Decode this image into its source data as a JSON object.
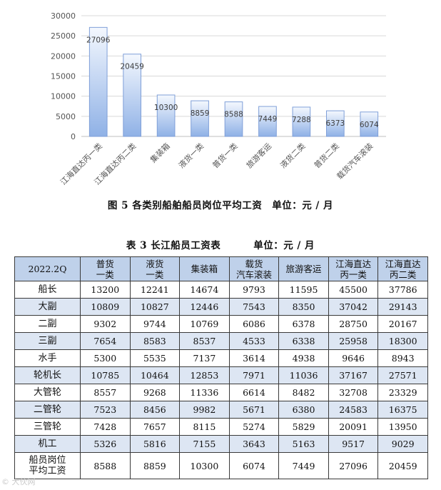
{
  "chart_data": {
    "type": "bar",
    "categories": [
      "江海直达丙一类",
      "江海直达丙二类",
      "集装箱",
      "液货一类",
      "普货一类",
      "旅游客运",
      "液货二类",
      "普货二类",
      "载货汽车滚装"
    ],
    "values": [
      27096,
      20459,
      10300,
      8859,
      8588,
      7449,
      7288,
      6373,
      6074
    ],
    "value_labels": [
      "27096",
      "20459",
      "10300",
      "8859",
      "8588",
      "7449",
      "7288",
      "6373",
      "6074"
    ],
    "y_ticks": [
      "0",
      "5000",
      "10000",
      "15000",
      "20000",
      "25000",
      "30000"
    ],
    "ylim": [
      0,
      30000
    ],
    "grid": true,
    "legend": "none",
    "bar_color_top": "#f4f8fe",
    "bar_color_bottom": "#8fb1e6",
    "bar_border": "#7f9fd8"
  },
  "figure_caption": {
    "title": "图 5   各类别船舶船员岗位平均工资",
    "unit": "单位：元 / 月"
  },
  "table_caption": {
    "title": "表 3   长江船员工资表",
    "unit": "单位：元 / 月"
  },
  "table": {
    "corner": "2022.2Q",
    "headers": [
      [
        "普货",
        "一类"
      ],
      [
        "液货",
        "一类"
      ],
      [
        "集装箱"
      ],
      [
        "载货",
        "汽车滚装"
      ],
      [
        "旅游客运"
      ],
      [
        "江海直达",
        "丙一类"
      ],
      [
        "江海直达",
        "丙二类"
      ]
    ],
    "rows": [
      {
        "label": [
          "船长"
        ],
        "values": [
          "13200",
          "12241",
          "14674",
          "9793",
          "11595",
          "45500",
          "37786"
        ]
      },
      {
        "label": [
          "大副"
        ],
        "values": [
          "10809",
          "10827",
          "12446",
          "7543",
          "8350",
          "37042",
          "29143"
        ]
      },
      {
        "label": [
          "二副"
        ],
        "values": [
          "9302",
          "9744",
          "10769",
          "6086",
          "6378",
          "28750",
          "20167"
        ]
      },
      {
        "label": [
          "三副"
        ],
        "values": [
          "7654",
          "8583",
          "8537",
          "4533",
          "6338",
          "25958",
          "18300"
        ]
      },
      {
        "label": [
          "水手"
        ],
        "values": [
          "5300",
          "5535",
          "7137",
          "3614",
          "4938",
          "9646",
          "8943"
        ]
      },
      {
        "label": [
          "轮机长"
        ],
        "values": [
          "10785",
          "10464",
          "12853",
          "7971",
          "11036",
          "37167",
          "27571"
        ]
      },
      {
        "label": [
          "大管轮"
        ],
        "values": [
          "8557",
          "9268",
          "11336",
          "6614",
          "8482",
          "32708",
          "23329"
        ]
      },
      {
        "label": [
          "二管轮"
        ],
        "values": [
          "7523",
          "8456",
          "9982",
          "5671",
          "6380",
          "24583",
          "16375"
        ]
      },
      {
        "label": [
          "三管轮"
        ],
        "values": [
          "7428",
          "7657",
          "8115",
          "5274",
          "5829",
          "20091",
          "13950"
        ]
      },
      {
        "label": [
          "机工"
        ],
        "values": [
          "5326",
          "5816",
          "7155",
          "3643",
          "5163",
          "9517",
          "9029"
        ]
      },
      {
        "label": [
          "船员岗位",
          "平均工资"
        ],
        "values": [
          "8588",
          "8859",
          "10300",
          "6074",
          "7449",
          "27096",
          "20459"
        ]
      }
    ]
  },
  "watermark": "© 大伙网"
}
